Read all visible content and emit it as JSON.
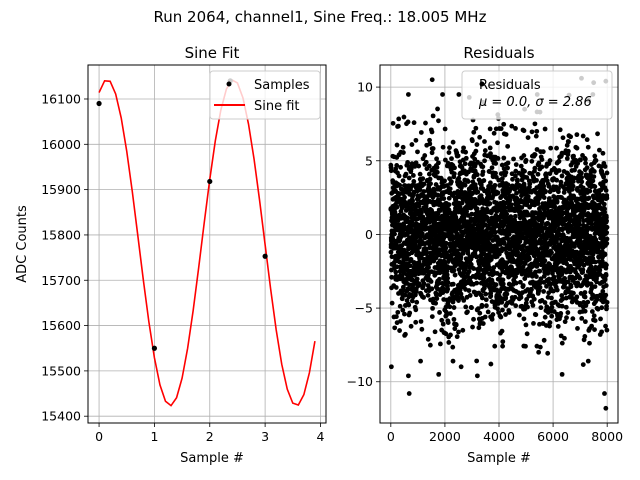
{
  "chart_data": {
    "suptitle": "Run 2064, channel1, Sine Freq.: 18.005 MHz",
    "panels": [
      {
        "type": "line",
        "title": "Sine Fit",
        "xlabel": "Sample #",
        "ylabel": "ADC Counts",
        "xlim": [
          -0.2,
          4.1
        ],
        "ylim": [
          15385,
          16175
        ],
        "xticks": [
          0,
          1,
          2,
          3,
          4
        ],
        "yticks": [
          15400,
          15500,
          15600,
          15700,
          15800,
          15900,
          16000,
          16100
        ],
        "grid": true,
        "legend_location": "top-right",
        "legend": [
          "Samples",
          "Sine fit"
        ],
        "samples": {
          "name": "Samples",
          "color": "#000000",
          "x": [
            0,
            1,
            2,
            3,
            2.37
          ],
          "y": [
            16090,
            15550,
            15918,
            15753,
            16140
          ]
        },
        "fit": {
          "name": "Sine fit",
          "color": "#ff0000",
          "params": {
            "offset": 15783,
            "amplitude": 360,
            "frequency": 0.4387,
            "phase": 1.1685
          },
          "x_range": [
            0,
            3.9
          ],
          "n_points": 40
        }
      },
      {
        "type": "scatter",
        "title": "Residuals",
        "xlabel": "Sample #",
        "ylabel": "",
        "xlim": [
          -400,
          8400
        ],
        "ylim": [
          -12.8,
          11.5
        ],
        "xticks": [
          0,
          2000,
          4000,
          6000,
          8000
        ],
        "yticks": [
          -10,
          -5,
          0,
          5,
          10
        ],
        "grid": true,
        "legend_location": "top-right",
        "legend": [
          "Residuals",
          "μ = 0.0, σ = 2.86"
        ],
        "series": {
          "name": "Residuals",
          "color": "#000000",
          "n_points": 8000,
          "mean": 0.0,
          "sigma": 2.86,
          "outliers": [
            [
              680,
              -10.8
            ],
            [
              650,
              -9.6
            ],
            [
              3200,
              -9.6
            ],
            [
              7950,
              -11.8
            ],
            [
              7900,
              -10.8
            ],
            [
              2300,
              -8.6
            ],
            [
              3700,
              -8.8
            ],
            [
              7300,
              -8.6
            ],
            [
              7500,
              10.3
            ],
            [
              1530,
              10.5
            ],
            [
              650,
              9.5
            ],
            [
              7950,
              10.4
            ],
            [
              2900,
              9.3
            ],
            [
              7050,
              10.6
            ],
            [
              1100,
              -8.6
            ]
          ]
        }
      }
    ]
  }
}
